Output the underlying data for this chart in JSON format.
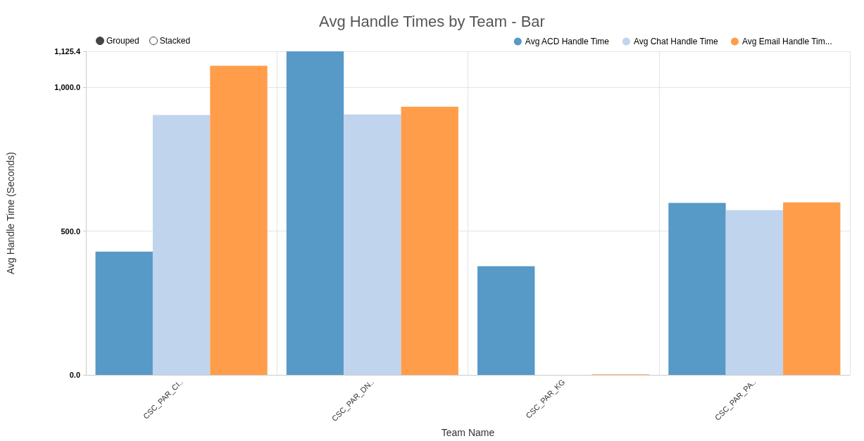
{
  "chart_data": {
    "type": "bar",
    "title": "Avg Handle Times by Team - Bar",
    "xlabel": "Team Name",
    "ylabel": "Avg Handle Time (Seconds)",
    "annotations": [
      "Grouped",
      "Stacked"
    ],
    "categories": [
      "CSC_PAR_CI..",
      "CSC_PAR_DN..",
      "CSC_PAR_KG",
      "CSC_PAR_PA.."
    ],
    "series": [
      {
        "name": "Avg ACD Handle Time",
        "color": "#5799c7",
        "values": [
          429,
          1125.4,
          378,
          598
        ]
      },
      {
        "name": "Avg Chat Handle Time",
        "color": "#c0d4ed",
        "values": [
          904,
          906,
          null,
          573
        ]
      },
      {
        "name": "Avg Email Handle Tim...",
        "color": "#ff9d4a",
        "values": [
          1075,
          933,
          2,
          600
        ]
      }
    ],
    "ylim": [
      0,
      1125.4
    ],
    "yticks": [
      {
        "value": 0,
        "label": "0.0"
      },
      {
        "value": 500,
        "label": "500.0"
      },
      {
        "value": 1000,
        "label": "1,000.0"
      },
      {
        "value": 1125.4,
        "label": "1,125.4"
      }
    ],
    "grid": true,
    "legend": "top right"
  }
}
